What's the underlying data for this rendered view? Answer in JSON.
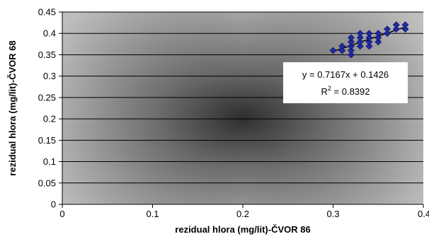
{
  "chart_data": {
    "type": "scatter",
    "xlabel": "rezidual hlora (mg/lit)-ČVOR 86",
    "ylabel": "rezidual hlora (mg/lit)-ČVOR 68",
    "xlim": [
      0,
      0.4
    ],
    "ylim": [
      0,
      0.45
    ],
    "x_ticks": [
      "0",
      "0.1",
      "0.2",
      "0.3",
      "0.4"
    ],
    "y_ticks": [
      "0",
      "0.05",
      "0.1",
      "0.15",
      "0.2",
      "0.25",
      "0.3",
      "0.35",
      "0.4",
      "0.45"
    ],
    "grid": "horizontal",
    "marker_color": "#1f2aa0",
    "trendline_color": "#000000",
    "points": [
      {
        "x": 0.3,
        "y": 0.36
      },
      {
        "x": 0.31,
        "y": 0.36
      },
      {
        "x": 0.31,
        "y": 0.37
      },
      {
        "x": 0.32,
        "y": 0.35
      },
      {
        "x": 0.32,
        "y": 0.36
      },
      {
        "x": 0.32,
        "y": 0.37
      },
      {
        "x": 0.32,
        "y": 0.38
      },
      {
        "x": 0.32,
        "y": 0.39
      },
      {
        "x": 0.33,
        "y": 0.37
      },
      {
        "x": 0.33,
        "y": 0.38
      },
      {
        "x": 0.33,
        "y": 0.39
      },
      {
        "x": 0.33,
        "y": 0.4
      },
      {
        "x": 0.34,
        "y": 0.37
      },
      {
        "x": 0.34,
        "y": 0.38
      },
      {
        "x": 0.34,
        "y": 0.39
      },
      {
        "x": 0.34,
        "y": 0.4
      },
      {
        "x": 0.35,
        "y": 0.38
      },
      {
        "x": 0.35,
        "y": 0.39
      },
      {
        "x": 0.35,
        "y": 0.4
      },
      {
        "x": 0.36,
        "y": 0.4
      },
      {
        "x": 0.36,
        "y": 0.41
      },
      {
        "x": 0.37,
        "y": 0.41
      },
      {
        "x": 0.37,
        "y": 0.42
      },
      {
        "x": 0.38,
        "y": 0.41
      },
      {
        "x": 0.38,
        "y": 0.42
      }
    ],
    "trendline": {
      "slope": 0.7167,
      "intercept": 0.1426,
      "x_range": [
        0.3,
        0.38
      ],
      "equation": "y = 0.7167x + 0.1426",
      "r2_label": "R",
      "r2_exp": "2",
      "r2_value": " = 0.8392"
    }
  }
}
